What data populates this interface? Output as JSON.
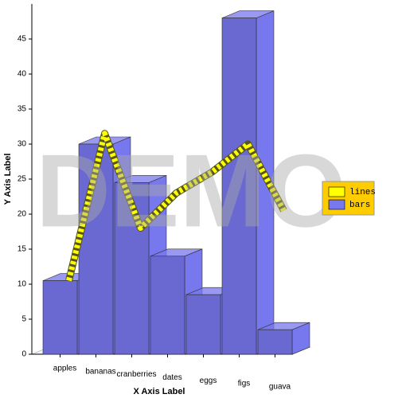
{
  "chart_data": {
    "type": "bar_line_3d",
    "watermark": "DEMO",
    "x_label": "X Axis Label",
    "y_label": "Y Axis Label",
    "categories": [
      "apples",
      "bananas",
      "cranberries",
      "dates",
      "eggs",
      "figs",
      "guava"
    ],
    "series": [
      {
        "name": "lines",
        "type": "line",
        "color": "#ffff00",
        "values": [
          10,
          31,
          17.5,
          22.5,
          25.5,
          29.5,
          20
        ]
      },
      {
        "name": "bars",
        "type": "bar",
        "color": "#7777ee",
        "values": [
          10.5,
          30,
          24.5,
          14,
          8.5,
          48,
          3.5
        ]
      }
    ],
    "ylim": [
      0,
      50
    ],
    "yticks": [
      0,
      5,
      10,
      15,
      20,
      25,
      30,
      35,
      40,
      45
    ],
    "legend": "right"
  }
}
